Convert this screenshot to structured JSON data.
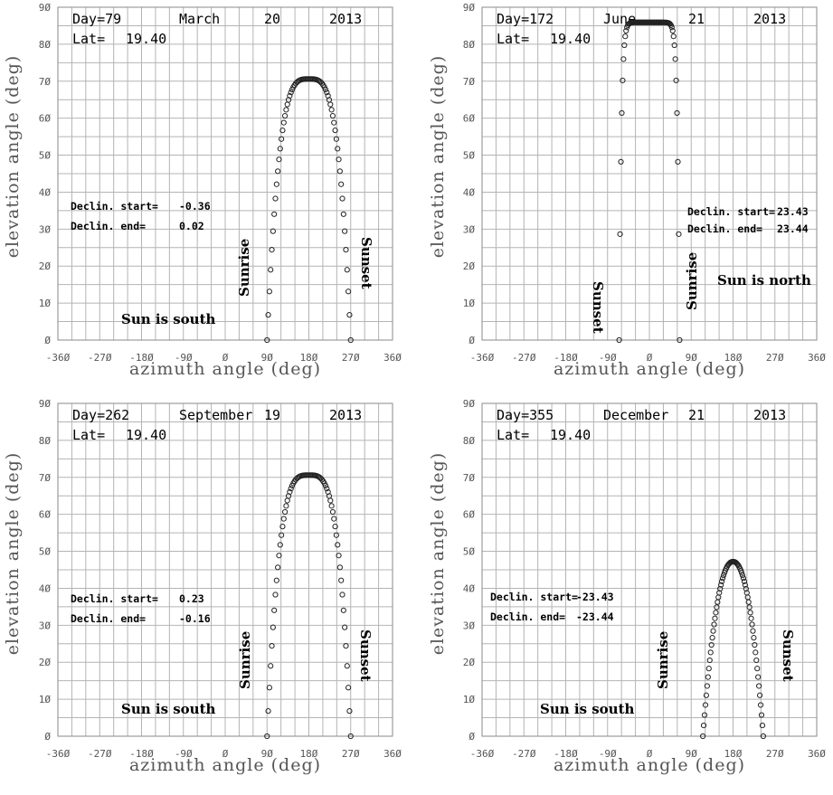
{
  "chart_data": [
    {
      "type": "scatter",
      "xlabel": "azimuth angle  (deg)",
      "ylabel": "elevation angle  (deg)",
      "xlim": [
        -360,
        360
      ],
      "ylim": [
        0,
        90
      ],
      "xticks": [
        "-36Ø",
        "-27Ø",
        "-18Ø",
        "-9Ø",
        "Ø",
        "9Ø",
        "18Ø",
        "27Ø",
        "36Ø"
      ],
      "yticks": [
        "Ø",
        "1Ø",
        "2Ø",
        "3Ø",
        "4Ø",
        "5Ø",
        "6Ø",
        "7Ø",
        "8Ø",
        "9Ø"
      ],
      "grid": true,
      "header": {
        "day_label": "Day=",
        "day": "79",
        "month": "March",
        "date": "20",
        "year": "2013",
        "lat_label": "Lat=",
        "lat": "19.40"
      },
      "declination": {
        "start_label": "Declin. start=",
        "start": "-0.36",
        "end_label": "Declin. end=",
        "end": "0.02"
      },
      "annotations": {
        "sunrise": "Sunrise",
        "sunset": "Sunset",
        "note": "Sun is south"
      },
      "path": {
        "rise_azimuth": 90,
        "set_azimuth": 270,
        "peak_azimuth": 180,
        "peak_elevation": 70.6,
        "rounding": 3.5
      }
    },
    {
      "type": "scatter",
      "xlabel": "azimuth angle  (deg)",
      "ylabel": "elevation angle  (deg)",
      "xlim": [
        -360,
        360
      ],
      "ylim": [
        0,
        90
      ],
      "xticks": [
        "-36Ø",
        "-27Ø",
        "-18Ø",
        "-9Ø",
        "Ø",
        "9Ø",
        "18Ø",
        "27Ø",
        "36Ø"
      ],
      "yticks": [
        "Ø",
        "1Ø",
        "2Ø",
        "3Ø",
        "4Ø",
        "5Ø",
        "6Ø",
        "7Ø",
        "8Ø",
        "9Ø"
      ],
      "grid": true,
      "header": {
        "day_label": "Day=",
        "day": "172",
        "month": "June",
        "date": "21",
        "year": "2013",
        "lat_label": "Lat=",
        "lat": "19.40"
      },
      "declination": {
        "start_label": "Declin. start=",
        "start": "23.43",
        "end_label": "Declin. end=",
        "end": "23.44"
      },
      "annotations": {
        "sunrise": "Sunrise",
        "sunset": "Sunset",
        "note": "Sun is north"
      },
      "path": {
        "rise_azimuth": 65,
        "set_azimuth": -65,
        "peak_azimuth": 0,
        "peak_elevation": 85.9,
        "rounding": 14
      }
    },
    {
      "type": "scatter",
      "xlabel": "azimuth angle  (deg)",
      "ylabel": "elevation angle  (deg)",
      "xlim": [
        -360,
        360
      ],
      "ylim": [
        0,
        90
      ],
      "xticks": [
        "-36Ø",
        "-27Ø",
        "-18Ø",
        "-9Ø",
        "Ø",
        "9Ø",
        "18Ø",
        "27Ø",
        "36Ø"
      ],
      "yticks": [
        "Ø",
        "1Ø",
        "2Ø",
        "3Ø",
        "4Ø",
        "5Ø",
        "6Ø",
        "7Ø",
        "8Ø",
        "9Ø"
      ],
      "grid": true,
      "header": {
        "day_label": "Day=",
        "day": "262",
        "month": "September",
        "date": "19",
        "year": "2013",
        "lat_label": "Lat=",
        "lat": "19.40"
      },
      "declination": {
        "start_label": "Declin. start=",
        "start": "0.23",
        "end_label": "Declin. end=",
        "end": "-0.16"
      },
      "annotations": {
        "sunrise": "Sunrise",
        "sunset": "Sunset",
        "note": "Sun is south"
      },
      "path": {
        "rise_azimuth": 90,
        "set_azimuth": 270,
        "peak_azimuth": 180,
        "peak_elevation": 70.6,
        "rounding": 3.5
      }
    },
    {
      "type": "scatter",
      "xlabel": "azimuth angle  (deg)",
      "ylabel": "elevation angle  (deg)",
      "xlim": [
        -360,
        360
      ],
      "ylim": [
        0,
        90
      ],
      "xticks": [
        "-36Ø",
        "-27Ø",
        "-18Ø",
        "-9Ø",
        "Ø",
        "9Ø",
        "18Ø",
        "27Ø",
        "36Ø"
      ],
      "yticks": [
        "Ø",
        "1Ø",
        "2Ø",
        "3Ø",
        "4Ø",
        "5Ø",
        "6Ø",
        "7Ø",
        "8Ø",
        "9Ø"
      ],
      "grid": true,
      "header": {
        "day_label": "Day=",
        "day": "355",
        "month": "December",
        "date": "21",
        "year": "2013",
        "lat_label": "Lat=",
        "lat": "19.40"
      },
      "declination": {
        "start_label": "Declin. start=",
        "start": "-23.43",
        "end_label": "Declin. end=",
        "end": "-23.44"
      },
      "annotations": {
        "sunrise": "Sunrise",
        "sunset": "Sunset",
        "note": "Sun is south"
      },
      "path": {
        "rise_azimuth": 115,
        "set_azimuth": 245,
        "peak_azimuth": 180,
        "peak_elevation": 47.2,
        "rounding": 2.2
      }
    }
  ]
}
